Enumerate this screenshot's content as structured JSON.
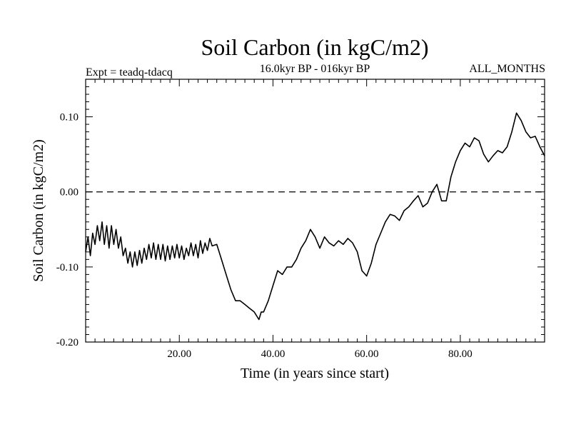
{
  "chart_data": {
    "type": "line",
    "title": "Soil Carbon (in kgC/m2)",
    "subtitle": "16.0kyr BP - 016kyr BP",
    "left_label": "Expt = teadq-tdacq",
    "right_label": "ALL_MONTHS",
    "xlabel": "Time (in years since start)",
    "ylabel": "Soil Carbon (in kgC/m2)",
    "xlim": [
      0,
      98
    ],
    "ylim": [
      -0.2,
      0.15
    ],
    "x_ticks": [
      20,
      40,
      60,
      80
    ],
    "x_tick_labels": [
      "20.00",
      "40.00",
      "60.00",
      "80.00"
    ],
    "y_ticks": [
      -0.2,
      -0.1,
      0.0,
      0.1
    ],
    "y_tick_labels": [
      "-0.20",
      "-0.10",
      "0.00",
      "0.10"
    ],
    "zero_line": {
      "y": 0.0,
      "style": "dashed"
    },
    "grid": false,
    "series": [
      {
        "x": [
          0,
          0.5,
          1,
          1.5,
          2,
          2.5,
          3,
          3.5,
          4,
          4.5,
          5,
          5.5,
          6,
          6.5,
          7,
          7.5,
          8,
          8.5,
          9,
          9.5,
          10,
          10.5,
          11,
          11.5,
          12,
          12.5,
          13,
          13.5,
          14,
          14.5,
          15,
          15.5,
          16,
          16.5,
          17,
          17.5,
          18,
          18.5,
          19,
          19.5,
          20,
          20.5,
          21,
          21.5,
          22,
          22.5,
          23,
          23.5,
          24,
          24.5,
          25,
          25.5,
          26,
          26.5,
          27,
          28,
          29,
          30,
          31,
          32,
          33,
          34,
          35,
          36,
          37,
          37.5,
          38,
          39,
          40,
          41,
          42,
          43,
          44,
          45,
          46,
          47,
          48,
          49,
          50,
          51,
          52,
          53,
          54,
          55,
          56,
          57,
          58,
          59,
          60,
          61,
          62,
          63,
          64,
          65,
          66,
          67,
          68,
          69,
          70,
          71,
          72,
          73,
          74,
          75,
          76,
          77,
          78,
          79,
          80,
          81,
          82,
          83,
          84,
          85,
          86,
          87,
          88,
          89,
          90,
          91,
          92,
          93,
          94,
          95,
          96,
          97,
          98
        ],
        "y": [
          -0.08,
          -0.06,
          -0.085,
          -0.055,
          -0.07,
          -0.045,
          -0.065,
          -0.04,
          -0.07,
          -0.045,
          -0.075,
          -0.045,
          -0.07,
          -0.05,
          -0.075,
          -0.06,
          -0.085,
          -0.075,
          -0.095,
          -0.08,
          -0.1,
          -0.08,
          -0.098,
          -0.078,
          -0.095,
          -0.075,
          -0.09,
          -0.07,
          -0.088,
          -0.068,
          -0.09,
          -0.07,
          -0.09,
          -0.07,
          -0.092,
          -0.072,
          -0.09,
          -0.072,
          -0.088,
          -0.07,
          -0.088,
          -0.072,
          -0.09,
          -0.075,
          -0.085,
          -0.068,
          -0.085,
          -0.07,
          -0.088,
          -0.065,
          -0.082,
          -0.068,
          -0.078,
          -0.062,
          -0.072,
          -0.07,
          -0.09,
          -0.11,
          -0.13,
          -0.145,
          -0.145,
          -0.15,
          -0.155,
          -0.16,
          -0.17,
          -0.16,
          -0.16,
          -0.145,
          -0.125,
          -0.105,
          -0.11,
          -0.1,
          -0.1,
          -0.09,
          -0.075,
          -0.065,
          -0.05,
          -0.06,
          -0.075,
          -0.06,
          -0.068,
          -0.072,
          -0.065,
          -0.07,
          -0.062,
          -0.068,
          -0.08,
          -0.105,
          -0.112,
          -0.095,
          -0.07,
          -0.055,
          -0.04,
          -0.03,
          -0.032,
          -0.038,
          -0.025,
          -0.02,
          -0.012,
          -0.005,
          -0.02,
          -0.015,
          0.0,
          0.01,
          -0.012,
          -0.012,
          0.02,
          0.04,
          0.055,
          0.065,
          0.06,
          0.072,
          0.068,
          0.05,
          0.04,
          0.048,
          0.055,
          0.052,
          0.06,
          0.08,
          0.105,
          0.095,
          0.08,
          0.072,
          0.074,
          0.06,
          0.048
        ]
      }
    ]
  }
}
